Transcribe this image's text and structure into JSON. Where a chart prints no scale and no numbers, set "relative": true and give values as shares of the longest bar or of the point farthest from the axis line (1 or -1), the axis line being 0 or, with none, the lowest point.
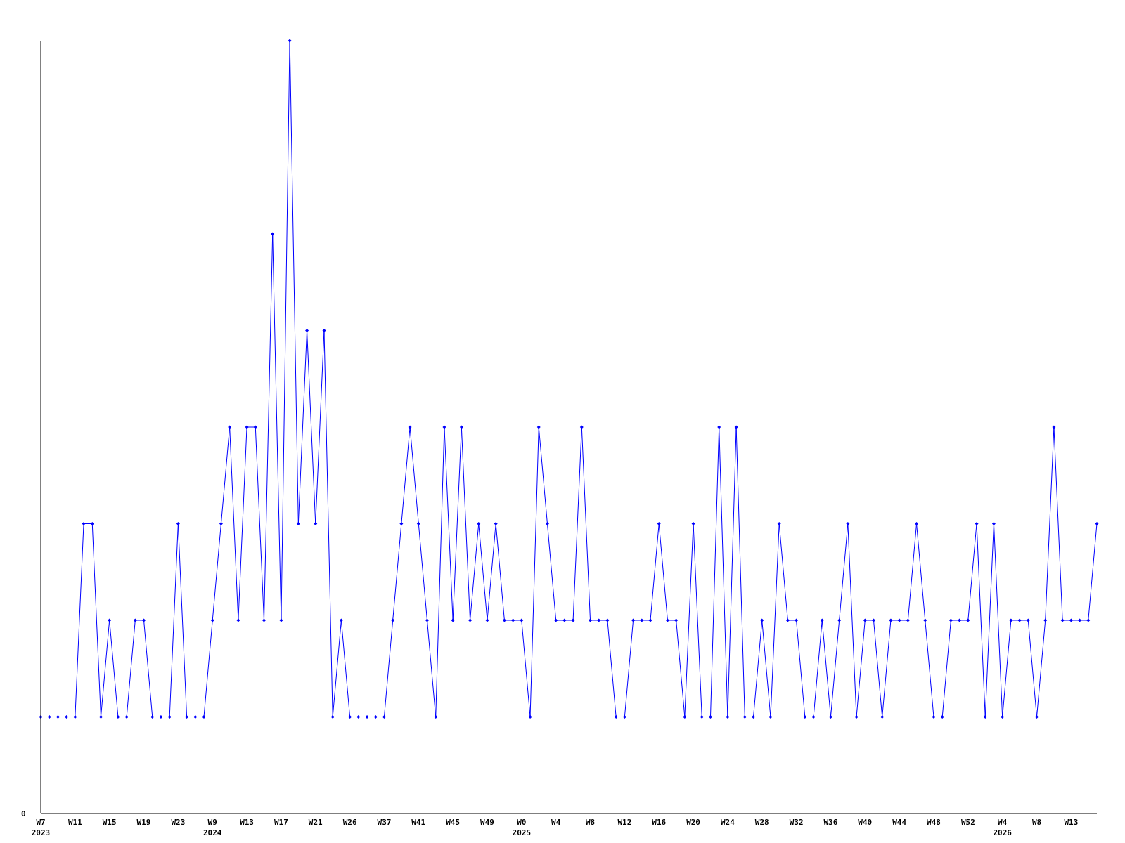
{
  "chart_data": {
    "type": "line",
    "relative": true,
    "marker": "diamond",
    "annotations": [
      "0"
    ],
    "categories": [
      "W7\n2023",
      null,
      null,
      null,
      "W11",
      null,
      null,
      null,
      "W15",
      null,
      null,
      null,
      "W19",
      null,
      null,
      null,
      "W23",
      null,
      null,
      null,
      "W9\n2024",
      null,
      null,
      null,
      "W13",
      null,
      null,
      null,
      "W17",
      null,
      null,
      null,
      "W21",
      null,
      null,
      null,
      "W26",
      null,
      null,
      null,
      "W37",
      null,
      null,
      null,
      "W41",
      null,
      null,
      null,
      "W45",
      null,
      null,
      null,
      "W49",
      null,
      null,
      null,
      "W0\n2025",
      null,
      null,
      null,
      "W4",
      null,
      null,
      null,
      "W8",
      null,
      null,
      null,
      "W12",
      null,
      null,
      null,
      "W16",
      null,
      null,
      null,
      "W20",
      null,
      null,
      null,
      "W24",
      null,
      null,
      null,
      "W28",
      null,
      null,
      null,
      "W32",
      null,
      null,
      null,
      "W36",
      null,
      null,
      null,
      "W40",
      null,
      null,
      null,
      "W44",
      null,
      null,
      null,
      "W48",
      null,
      null,
      null,
      "W52",
      null,
      null,
      null,
      "W4\n2026",
      null,
      null,
      null,
      "W8",
      null,
      null,
      null,
      "W13",
      null,
      null,
      null
    ],
    "series": [
      {
        "color": "#0000ff",
        "values": [
          0.125,
          0.125,
          0.125,
          0.125,
          0.125,
          0.375,
          0.375,
          0.125,
          0.25,
          0.125,
          0.125,
          0.25,
          0.25,
          0.125,
          0.125,
          0.125,
          0.375,
          0.125,
          0.125,
          0.125,
          0.25,
          0.375,
          0.5,
          0.25,
          0.5,
          0.5,
          0.25,
          0.75,
          0.25,
          1,
          0.375,
          0.625,
          0.375,
          0.625,
          0.125,
          0.25,
          0.125,
          0.125,
          0.125,
          0.125,
          0.125,
          0.25,
          0.375,
          0.5,
          0.375,
          0.25,
          0.125,
          0.5,
          0.25,
          0.5,
          0.25,
          0.375,
          0.25,
          0.375,
          0.25,
          0.25,
          0.25,
          0.125,
          0.5,
          0.375,
          0.25,
          0.25,
          0.25,
          0.5,
          0.25,
          0.25,
          0.25,
          0.125,
          0.125,
          0.25,
          0.25,
          0.25,
          0.375,
          0.25,
          0.25,
          0.125,
          0.375,
          0.125,
          0.125,
          0.5,
          0.125,
          0.5,
          0.125,
          0.125,
          0.25,
          0.125,
          0.375,
          0.25,
          0.25,
          0.125,
          0.125,
          0.25,
          0.125,
          0.25,
          0.375,
          0.125,
          0.25,
          0.25,
          0.125,
          0.25,
          0.25,
          0.25,
          0.375,
          0.25,
          0.125,
          0.125,
          0.25,
          0.25,
          0.25,
          0.375,
          0.125,
          0.375,
          0.125,
          0.25,
          0.25,
          0.25,
          0.125,
          0.25,
          0.5,
          0.25,
          0.25,
          0.25,
          0.25,
          0.375
        ]
      }
    ]
  }
}
